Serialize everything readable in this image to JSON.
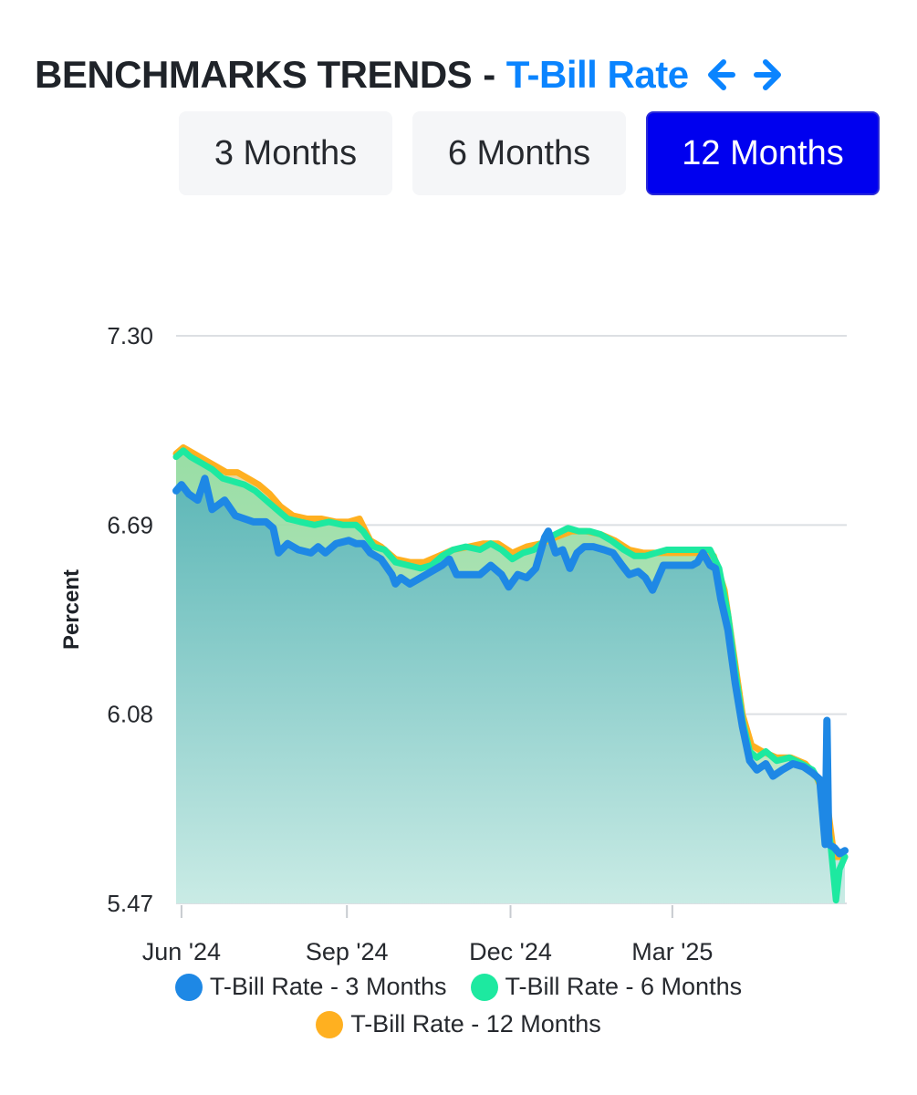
{
  "header": {
    "title": "BENCHMARKS TRENDS",
    "separator": "-",
    "subtitle": "T-Bill Rate"
  },
  "icons": {
    "prev": "arrow-left-icon",
    "next": "arrow-right-icon"
  },
  "tabs": [
    {
      "label": "3 Months",
      "active": false
    },
    {
      "label": "6 Months",
      "active": false
    },
    {
      "label": "12 Months",
      "active": true
    }
  ],
  "colors": {
    "accent": "#0a84ff",
    "active_tab": "#0000ef",
    "series_3m": "#1e88e5",
    "series_6m": "#1de9a0",
    "series_12m": "#ffb020",
    "area_fill_top": "#5ab5b8",
    "area_fill_bottom": "#c9ebe6"
  },
  "chart_data": {
    "type": "area",
    "ylabel": "Percent",
    "xlabel": "",
    "ylim": [
      5.47,
      7.3
    ],
    "yticks": [
      "7.30",
      "6.69",
      "6.08",
      "5.47"
    ],
    "xticks": [
      {
        "label": "Jun '24",
        "date": "2024-06-01"
      },
      {
        "label": "Sep '24",
        "date": "2024-09-01"
      },
      {
        "label": "Dec '24",
        "date": "2024-12-01"
      },
      {
        "label": "Mar '25",
        "date": "2025-03-01"
      }
    ],
    "xlim": [
      "2024-05-29",
      "2025-06-06"
    ],
    "grid": true,
    "legend_position": "bottom",
    "series": [
      {
        "name": "T-Bill Rate - 3 Months",
        "points": [
          [
            "2024-05-29",
            6.8
          ],
          [
            "2024-06-01",
            6.82
          ],
          [
            "2024-06-05",
            6.79
          ],
          [
            "2024-06-10",
            6.77
          ],
          [
            "2024-06-14",
            6.84
          ],
          [
            "2024-06-18",
            6.74
          ],
          [
            "2024-06-25",
            6.77
          ],
          [
            "2024-07-01",
            6.72
          ],
          [
            "2024-07-06",
            6.71
          ],
          [
            "2024-07-11",
            6.7
          ],
          [
            "2024-07-18",
            6.7
          ],
          [
            "2024-07-22",
            6.68
          ],
          [
            "2024-07-25",
            6.6
          ],
          [
            "2024-07-30",
            6.63
          ],
          [
            "2024-08-05",
            6.61
          ],
          [
            "2024-08-12",
            6.6
          ],
          [
            "2024-08-16",
            6.62
          ],
          [
            "2024-08-20",
            6.6
          ],
          [
            "2024-08-26",
            6.63
          ],
          [
            "2024-09-02",
            6.64
          ],
          [
            "2024-09-06",
            6.63
          ],
          [
            "2024-09-10",
            6.63
          ],
          [
            "2024-09-14",
            6.6
          ],
          [
            "2024-09-20",
            6.58
          ],
          [
            "2024-09-26",
            6.53
          ],
          [
            "2024-09-28",
            6.5
          ],
          [
            "2024-10-01",
            6.52
          ],
          [
            "2024-10-06",
            6.5
          ],
          [
            "2024-10-12",
            6.52
          ],
          [
            "2024-10-18",
            6.54
          ],
          [
            "2024-10-24",
            6.56
          ],
          [
            "2024-10-28",
            6.58
          ],
          [
            "2024-11-01",
            6.53
          ],
          [
            "2024-11-08",
            6.53
          ],
          [
            "2024-11-14",
            6.53
          ],
          [
            "2024-11-20",
            6.56
          ],
          [
            "2024-11-26",
            6.53
          ],
          [
            "2024-11-30",
            6.49
          ],
          [
            "2024-12-05",
            6.53
          ],
          [
            "2024-12-10",
            6.52
          ],
          [
            "2024-12-15",
            6.55
          ],
          [
            "2024-12-20",
            6.65
          ],
          [
            "2024-12-22",
            6.67
          ],
          [
            "2024-12-26",
            6.6
          ],
          [
            "2024-12-30",
            6.61
          ],
          [
            "2025-01-03",
            6.55
          ],
          [
            "2025-01-07",
            6.6
          ],
          [
            "2025-01-11",
            6.62
          ],
          [
            "2025-01-16",
            6.62
          ],
          [
            "2025-01-22",
            6.61
          ],
          [
            "2025-01-27",
            6.6
          ],
          [
            "2025-02-01",
            6.56
          ],
          [
            "2025-02-05",
            6.53
          ],
          [
            "2025-02-10",
            6.54
          ],
          [
            "2025-02-14",
            6.52
          ],
          [
            "2025-02-18",
            6.48
          ],
          [
            "2025-02-24",
            6.56
          ],
          [
            "2025-03-01",
            6.56
          ],
          [
            "2025-03-06",
            6.56
          ],
          [
            "2025-03-12",
            6.56
          ],
          [
            "2025-03-15",
            6.57
          ],
          [
            "2025-03-18",
            6.6
          ],
          [
            "2025-03-22",
            6.56
          ],
          [
            "2025-03-25",
            6.55
          ],
          [
            "2025-03-28",
            6.45
          ],
          [
            "2025-04-01",
            6.35
          ],
          [
            "2025-04-05",
            6.18
          ],
          [
            "2025-04-09",
            6.04
          ],
          [
            "2025-04-13",
            5.93
          ],
          [
            "2025-04-17",
            5.9
          ],
          [
            "2025-04-22",
            5.92
          ],
          [
            "2025-04-26",
            5.88
          ],
          [
            "2025-05-01",
            5.9
          ],
          [
            "2025-05-07",
            5.92
          ],
          [
            "2025-05-13",
            5.91
          ],
          [
            "2025-05-18",
            5.89
          ],
          [
            "2025-05-22",
            5.87
          ],
          [
            "2025-05-25",
            5.66
          ],
          [
            "2025-05-26",
            6.06
          ],
          [
            "2025-05-27",
            5.66
          ],
          [
            "2025-05-30",
            5.65
          ],
          [
            "2025-06-02",
            5.63
          ],
          [
            "2025-06-05",
            5.64
          ]
        ]
      },
      {
        "name": "T-Bill Rate - 6 Months",
        "points": [
          [
            "2024-05-29",
            6.91
          ],
          [
            "2024-06-02",
            6.93
          ],
          [
            "2024-06-06",
            6.91
          ],
          [
            "2024-06-12",
            6.89
          ],
          [
            "2024-06-18",
            6.87
          ],
          [
            "2024-06-24",
            6.84
          ],
          [
            "2024-06-30",
            6.83
          ],
          [
            "2024-07-06",
            6.82
          ],
          [
            "2024-07-12",
            6.8
          ],
          [
            "2024-07-18",
            6.77
          ],
          [
            "2024-07-24",
            6.74
          ],
          [
            "2024-07-30",
            6.71
          ],
          [
            "2024-08-06",
            6.7
          ],
          [
            "2024-08-14",
            6.69
          ],
          [
            "2024-08-22",
            6.7
          ],
          [
            "2024-08-30",
            6.69
          ],
          [
            "2024-09-06",
            6.69
          ],
          [
            "2024-09-10",
            6.67
          ],
          [
            "2024-09-16",
            6.62
          ],
          [
            "2024-09-22",
            6.61
          ],
          [
            "2024-09-28",
            6.57
          ],
          [
            "2024-10-05",
            6.56
          ],
          [
            "2024-10-12",
            6.55
          ],
          [
            "2024-10-18",
            6.56
          ],
          [
            "2024-10-24",
            6.59
          ],
          [
            "2024-10-30",
            6.61
          ],
          [
            "2024-11-06",
            6.62
          ],
          [
            "2024-11-14",
            6.61
          ],
          [
            "2024-11-20",
            6.63
          ],
          [
            "2024-11-26",
            6.61
          ],
          [
            "2024-12-02",
            6.58
          ],
          [
            "2024-12-08",
            6.6
          ],
          [
            "2024-12-14",
            6.61
          ],
          [
            "2024-12-20",
            6.64
          ],
          [
            "2024-12-26",
            6.66
          ],
          [
            "2025-01-02",
            6.68
          ],
          [
            "2025-01-08",
            6.67
          ],
          [
            "2025-01-14",
            6.67
          ],
          [
            "2025-01-20",
            6.66
          ],
          [
            "2025-01-26",
            6.64
          ],
          [
            "2025-02-02",
            6.61
          ],
          [
            "2025-02-08",
            6.59
          ],
          [
            "2025-02-14",
            6.59
          ],
          [
            "2025-02-20",
            6.6
          ],
          [
            "2025-02-26",
            6.61
          ],
          [
            "2025-03-04",
            6.61
          ],
          [
            "2025-03-10",
            6.61
          ],
          [
            "2025-03-16",
            6.61
          ],
          [
            "2025-03-22",
            6.61
          ],
          [
            "2025-03-27",
            6.55
          ],
          [
            "2025-04-01",
            6.4
          ],
          [
            "2025-04-05",
            6.22
          ],
          [
            "2025-04-09",
            6.06
          ],
          [
            "2025-04-13",
            5.96
          ],
          [
            "2025-04-17",
            5.94
          ],
          [
            "2025-04-22",
            5.96
          ],
          [
            "2025-04-28",
            5.93
          ],
          [
            "2025-05-05",
            5.94
          ],
          [
            "2025-05-12",
            5.92
          ],
          [
            "2025-05-18",
            5.9
          ],
          [
            "2025-05-23",
            5.85
          ],
          [
            "2025-05-28",
            5.66
          ],
          [
            "2025-05-31",
            5.48
          ],
          [
            "2025-06-02",
            5.58
          ],
          [
            "2025-06-05",
            5.62
          ]
        ]
      },
      {
        "name": "T-Bill Rate - 12 Months",
        "points": [
          [
            "2024-05-29",
            6.92
          ],
          [
            "2024-06-02",
            6.94
          ],
          [
            "2024-06-08",
            6.92
          ],
          [
            "2024-06-14",
            6.9
          ],
          [
            "2024-06-20",
            6.88
          ],
          [
            "2024-06-26",
            6.86
          ],
          [
            "2024-07-02",
            6.86
          ],
          [
            "2024-07-08",
            6.84
          ],
          [
            "2024-07-14",
            6.82
          ],
          [
            "2024-07-20",
            6.79
          ],
          [
            "2024-07-26",
            6.75
          ],
          [
            "2024-08-02",
            6.72
          ],
          [
            "2024-08-10",
            6.71
          ],
          [
            "2024-08-18",
            6.71
          ],
          [
            "2024-08-26",
            6.7
          ],
          [
            "2024-09-02",
            6.7
          ],
          [
            "2024-09-08",
            6.71
          ],
          [
            "2024-09-14",
            6.64
          ],
          [
            "2024-09-20",
            6.62
          ],
          [
            "2024-09-28",
            6.58
          ],
          [
            "2024-10-06",
            6.57
          ],
          [
            "2024-10-14",
            6.57
          ],
          [
            "2024-10-22",
            6.59
          ],
          [
            "2024-10-30",
            6.61
          ],
          [
            "2024-11-08",
            6.62
          ],
          [
            "2024-11-16",
            6.63
          ],
          [
            "2024-11-24",
            6.63
          ],
          [
            "2024-12-02",
            6.6
          ],
          [
            "2024-12-10",
            6.62
          ],
          [
            "2024-12-18",
            6.63
          ],
          [
            "2024-12-26",
            6.65
          ],
          [
            "2025-01-04",
            6.67
          ],
          [
            "2025-01-12",
            6.67
          ],
          [
            "2025-01-20",
            6.66
          ],
          [
            "2025-01-28",
            6.64
          ],
          [
            "2025-02-05",
            6.61
          ],
          [
            "2025-02-13",
            6.6
          ],
          [
            "2025-02-21",
            6.6
          ],
          [
            "2025-03-01",
            6.6
          ],
          [
            "2025-03-09",
            6.6
          ],
          [
            "2025-03-17",
            6.6
          ],
          [
            "2025-03-24",
            6.59
          ],
          [
            "2025-03-30",
            6.48
          ],
          [
            "2025-04-04",
            6.28
          ],
          [
            "2025-04-09",
            6.08
          ],
          [
            "2025-04-14",
            5.98
          ],
          [
            "2025-04-20",
            5.96
          ],
          [
            "2025-04-28",
            5.94
          ],
          [
            "2025-05-06",
            5.94
          ],
          [
            "2025-05-14",
            5.92
          ],
          [
            "2025-05-20",
            5.88
          ],
          [
            "2025-05-26",
            5.8
          ],
          [
            "2025-05-30",
            5.62
          ],
          [
            "2025-06-05",
            5.62
          ]
        ]
      }
    ]
  },
  "legend": [
    {
      "label": "T-Bill Rate - 3 Months",
      "color": "#1e88e5"
    },
    {
      "label": "T-Bill Rate - 6 Months",
      "color": "#1de9a0"
    },
    {
      "label": "T-Bill Rate - 12 Months",
      "color": "#ffb020"
    }
  ]
}
